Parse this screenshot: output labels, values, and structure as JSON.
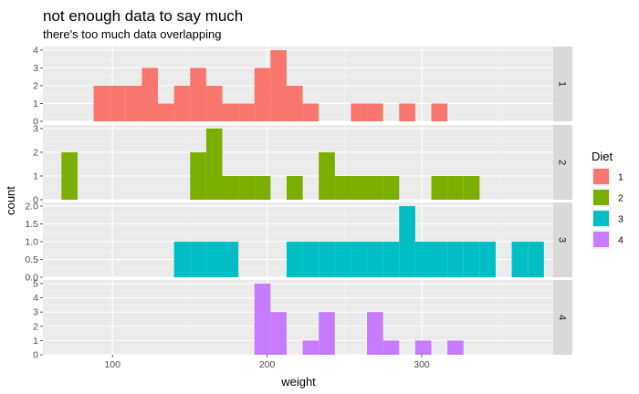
{
  "chart_data": {
    "type": "bar",
    "subtype": "faceted-histogram",
    "title": "not enough data to say much",
    "subtitle": "there's too much data overlapping",
    "xlabel": "weight",
    "ylabel": "count",
    "xlim": [
      55,
      385
    ],
    "binwidth": 10.4,
    "x_ticks": [
      100,
      200,
      300
    ],
    "legend": {
      "title": "Diet",
      "position": "right"
    },
    "grid": true,
    "facet_position": "right",
    "facets": [
      {
        "label": "1",
        "color": "#F8766D",
        "ylim": [
          0,
          4.2
        ],
        "y_ticks": [
          0,
          1,
          2,
          3,
          4
        ],
        "bins": [
          {
            "x": 93.0,
            "count": 2
          },
          {
            "x": 103.4,
            "count": 2
          },
          {
            "x": 113.8,
            "count": 2
          },
          {
            "x": 124.2,
            "count": 3
          },
          {
            "x": 134.6,
            "count": 1
          },
          {
            "x": 145.0,
            "count": 2
          },
          {
            "x": 155.4,
            "count": 3
          },
          {
            "x": 165.8,
            "count": 2
          },
          {
            "x": 176.2,
            "count": 1
          },
          {
            "x": 186.6,
            "count": 1
          },
          {
            "x": 197.0,
            "count": 3
          },
          {
            "x": 207.4,
            "count": 4
          },
          {
            "x": 217.8,
            "count": 2
          },
          {
            "x": 228.2,
            "count": 1
          },
          {
            "x": 259.4,
            "count": 1
          },
          {
            "x": 269.8,
            "count": 1
          },
          {
            "x": 290.6,
            "count": 1
          },
          {
            "x": 311.4,
            "count": 1
          }
        ]
      },
      {
        "label": "2",
        "color": "#7CAE00",
        "ylim": [
          0,
          3.15
        ],
        "y_ticks": [
          0,
          1,
          2,
          3
        ],
        "bins": [
          {
            "x": 72.2,
            "count": 2
          },
          {
            "x": 155.4,
            "count": 2
          },
          {
            "x": 165.8,
            "count": 3
          },
          {
            "x": 176.2,
            "count": 1
          },
          {
            "x": 186.6,
            "count": 1
          },
          {
            "x": 197.0,
            "count": 1
          },
          {
            "x": 217.8,
            "count": 1
          },
          {
            "x": 238.6,
            "count": 2
          },
          {
            "x": 249.0,
            "count": 1
          },
          {
            "x": 259.4,
            "count": 1
          },
          {
            "x": 269.8,
            "count": 1
          },
          {
            "x": 280.2,
            "count": 1
          },
          {
            "x": 311.4,
            "count": 1
          },
          {
            "x": 321.8,
            "count": 1
          },
          {
            "x": 332.2,
            "count": 1
          }
        ]
      },
      {
        "label": "3",
        "color": "#00BFC4",
        "ylim": [
          0,
          2.1
        ],
        "y_ticks": [
          0.0,
          0.5,
          1.0,
          1.5,
          2.0
        ],
        "y_tick_labels": [
          "0.0",
          "0.5",
          "1.0",
          "1.5",
          "2.0"
        ],
        "bins": [
          {
            "x": 145.0,
            "count": 1
          },
          {
            "x": 155.4,
            "count": 1
          },
          {
            "x": 165.8,
            "count": 1
          },
          {
            "x": 176.2,
            "count": 1
          },
          {
            "x": 217.8,
            "count": 1
          },
          {
            "x": 228.2,
            "count": 1
          },
          {
            "x": 238.6,
            "count": 1
          },
          {
            "x": 249.0,
            "count": 1
          },
          {
            "x": 259.4,
            "count": 1
          },
          {
            "x": 269.8,
            "count": 1
          },
          {
            "x": 280.2,
            "count": 1
          },
          {
            "x": 290.6,
            "count": 2
          },
          {
            "x": 301.0,
            "count": 1
          },
          {
            "x": 311.4,
            "count": 1
          },
          {
            "x": 321.8,
            "count": 1
          },
          {
            "x": 332.2,
            "count": 1
          },
          {
            "x": 342.6,
            "count": 1
          },
          {
            "x": 363.4,
            "count": 1
          },
          {
            "x": 373.8,
            "count": 1
          }
        ]
      },
      {
        "label": "4",
        "color": "#C77CFF",
        "ylim": [
          0,
          5.25
        ],
        "y_ticks": [
          0,
          1,
          2,
          3,
          4,
          5
        ],
        "bins": [
          {
            "x": 197.0,
            "count": 5
          },
          {
            "x": 207.4,
            "count": 3
          },
          {
            "x": 228.2,
            "count": 1
          },
          {
            "x": 238.6,
            "count": 3
          },
          {
            "x": 269.8,
            "count": 3
          },
          {
            "x": 280.2,
            "count": 1
          },
          {
            "x": 301.0,
            "count": 1
          },
          {
            "x": 321.8,
            "count": 1
          }
        ]
      }
    ]
  }
}
